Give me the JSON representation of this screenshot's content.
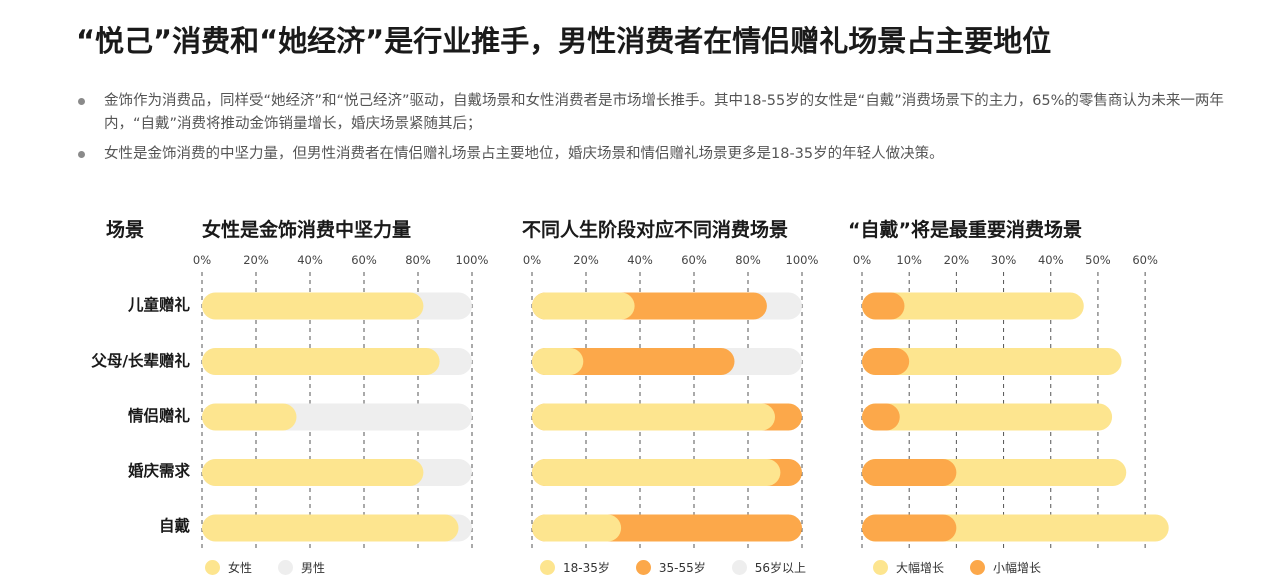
{
  "title": "“悦己”消费和“她经济”是行业推手，男性消费者在情侣赠礼场景占主要地位",
  "bullets": [
    "金饰作为消费品，同样受“她经济”和“悦己经济”驱动，自戴场景和女性消费者是市场增长推手。其中18-55岁的女性是“自戴”消费场景下的主力，65%的零售商认为未来一两年内，“自戴”消费将推动金饰销量增长，婚庆场景紧随其后；",
    "女性是金饰消费的中坚力量，但男性消费者在情侣赠礼场景占主要地位，婚庆场景和情侣赠礼场景更多是18-35岁的年轻人做决策。"
  ],
  "row_header": "场景",
  "scenes": [
    "儿童赠礼",
    "父母/长辈赠礼",
    "情侣赠礼",
    "婚庆需求",
    "自戴"
  ],
  "colors": {
    "light_yellow": "#fde58f",
    "orange": "#fca84a",
    "gray": "#eeeeee",
    "grid": "#555555"
  },
  "chart_data": [
    {
      "type": "bar",
      "stacked": true,
      "title": "女性是金饰消费中坚力量",
      "categories": [
        "儿童赠礼",
        "父母/长辈赠礼",
        "情侣赠礼",
        "婚庆需求",
        "自戴"
      ],
      "xlim": [
        0,
        100
      ],
      "ticks": [
        "0%",
        "20%",
        "40%",
        "60%",
        "80%",
        "100%"
      ],
      "series": [
        {
          "name": "女性",
          "color": "#fde58f",
          "values": [
            82,
            88,
            35,
            82,
            95
          ]
        },
        {
          "name": "男性",
          "color": "#eeeeee",
          "values": [
            18,
            12,
            65,
            18,
            5
          ]
        }
      ]
    },
    {
      "type": "bar",
      "stacked": true,
      "title": "不同人生阶段对应不同消费场景",
      "categories": [
        "儿童赠礼",
        "父母/长辈赠礼",
        "情侣赠礼",
        "婚庆需求",
        "自戴"
      ],
      "xlim": [
        0,
        100
      ],
      "ticks": [
        "0%",
        "20%",
        "40%",
        "60%",
        "80%",
        "100%"
      ],
      "series": [
        {
          "name": "18-35岁",
          "color": "#fde58f",
          "values": [
            38,
            19,
            90,
            92,
            33
          ]
        },
        {
          "name": "35-55岁",
          "color": "#fca84a",
          "values": [
            49,
            56,
            10,
            8,
            67
          ]
        },
        {
          "name": "56岁以上",
          "color": "#eeeeee",
          "values": [
            13,
            25,
            0,
            0,
            0
          ]
        }
      ]
    },
    {
      "type": "bar",
      "title": "“自戴”将是最重要消费场景",
      "categories": [
        "儿童赠礼",
        "父母/长辈赠礼",
        "情侣赠礼",
        "婚庆需求",
        "自戴"
      ],
      "xlim": [
        0,
        64
      ],
      "ticks": [
        "0%",
        "10%",
        "20%",
        "30%",
        "40%",
        "50%",
        "60%"
      ],
      "series": [
        {
          "name": "大幅增长",
          "color": "#fde58f",
          "values": [
            47,
            55,
            53,
            56,
            65
          ]
        },
        {
          "name": "小幅增长",
          "color": "#fca84a",
          "values": [
            9,
            10,
            8,
            20,
            20
          ]
        }
      ]
    }
  ]
}
